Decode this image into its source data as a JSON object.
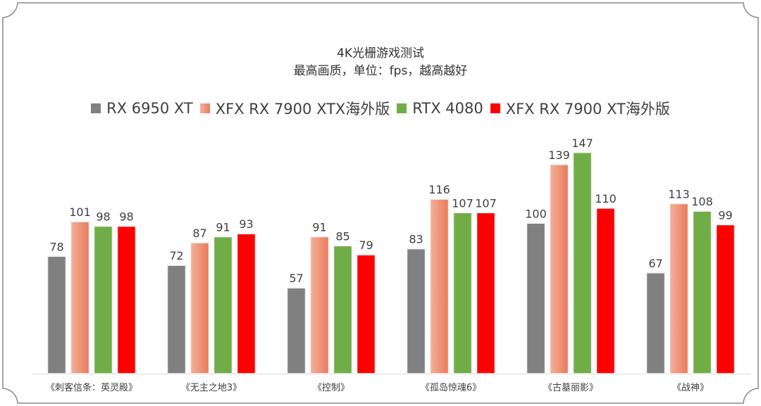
{
  "chart_data": {
    "type": "bar",
    "title": "4K光栅游戏测试",
    "subtitle": "最高画质，单位：fps，越高越好",
    "categories": [
      "《刺客信条：英灵殿》",
      "《无主之地3》",
      "《控制》",
      "《孤岛惊魂6》",
      "《古墓丽影》",
      "《战神》"
    ],
    "series": [
      {
        "name": "RX 6950 XT",
        "color": "#808080",
        "values": [
          78,
          72,
          57,
          83,
          100,
          67
        ]
      },
      {
        "name": "XFX RX 7900 XTX海外版",
        "color": "#E9795A",
        "color_light": "#F4B19B",
        "values": [
          101,
          87,
          91,
          116,
          139,
          113
        ]
      },
      {
        "name": "RTX 4080",
        "color": "#70AD47",
        "values": [
          98,
          91,
          85,
          107,
          147,
          108
        ]
      },
      {
        "name": "XFX RX 7900 XT海外版",
        "color": "#FF0000",
        "values": [
          98,
          93,
          79,
          107,
          110,
          99
        ]
      }
    ],
    "ylim": [
      0,
      160
    ],
    "grid": false,
    "legend": "top",
    "data_labels": true
  }
}
